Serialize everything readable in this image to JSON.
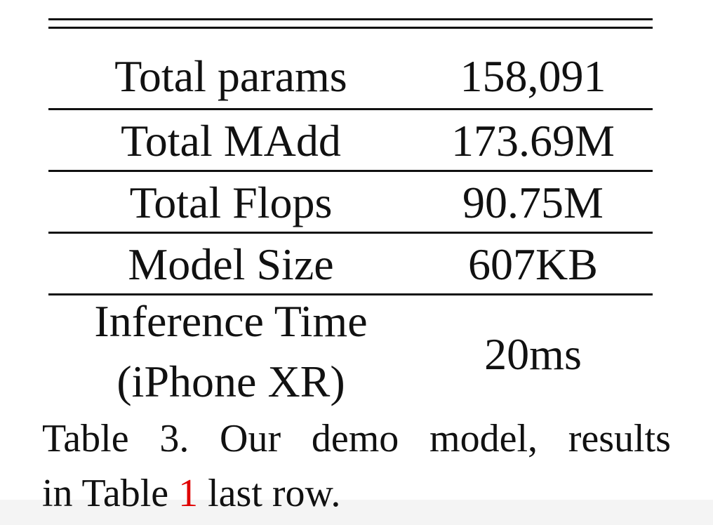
{
  "table": {
    "rows": [
      {
        "label": "Total params",
        "value": "158,091"
      },
      {
        "label": "Total MAdd",
        "value": "173.69M"
      },
      {
        "label": "Total Flops",
        "value": "90.75M"
      },
      {
        "label": "Model Size",
        "value": "607KB"
      }
    ],
    "last_row": {
      "label_line1": "Inference Time",
      "label_line2": "(iPhone XR)",
      "value": "20ms"
    }
  },
  "caption": {
    "words_line1": [
      "Table",
      "3.",
      "Our",
      "demo",
      "model,",
      "results"
    ],
    "line2_prefix": "in Table ",
    "line2_ref": "1",
    "line2_suffix": " last row.",
    "ref_color": "#e00000"
  }
}
